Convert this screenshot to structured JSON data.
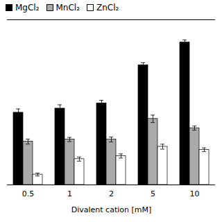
{
  "chart_data": {
    "type": "bar",
    "xlabel": "Divalent cation [mM]",
    "categories": [
      "0.5",
      "1",
      "2",
      "5",
      "10"
    ],
    "series": [
      {
        "name": "MgCl₂",
        "color": "#000000",
        "values": [
          3.5,
          3.7,
          3.95,
          5.8,
          6.9
        ],
        "errors": [
          0.18,
          0.18,
          0.15,
          0.12,
          0.12
        ]
      },
      {
        "name": "MnCl₂",
        "color": "#aaaaaa",
        "values": [
          2.1,
          2.2,
          2.2,
          3.2,
          2.75
        ],
        "errors": [
          0.12,
          0.1,
          0.12,
          0.18,
          0.1
        ]
      },
      {
        "name": "ZnCl₂",
        "color": "#ffffff",
        "values": [
          0.5,
          1.25,
          1.4,
          1.85,
          1.7
        ],
        "errors": [
          0.07,
          0.1,
          0.1,
          0.12,
          0.09
        ]
      }
    ],
    "ylim": [
      0,
      8
    ],
    "tick_labels": "x",
    "grid": false,
    "legend": "upper left"
  }
}
